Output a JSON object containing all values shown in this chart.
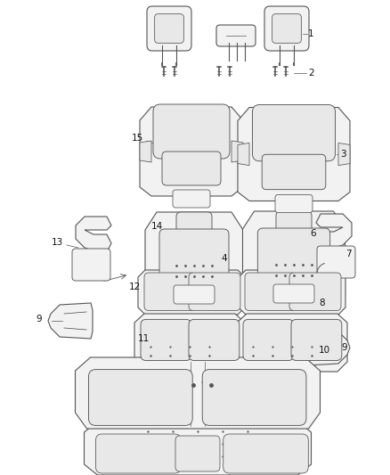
{
  "bg_color": "#ffffff",
  "line_color": "#555555",
  "text_color": "#111111",
  "figsize": [
    4.38,
    5.33
  ],
  "dpi": 100,
  "lw": 0.8,
  "gray_fill": "#e8e8e8",
  "light_fill": "#f2f2f2",
  "white_fill": "#ffffff"
}
